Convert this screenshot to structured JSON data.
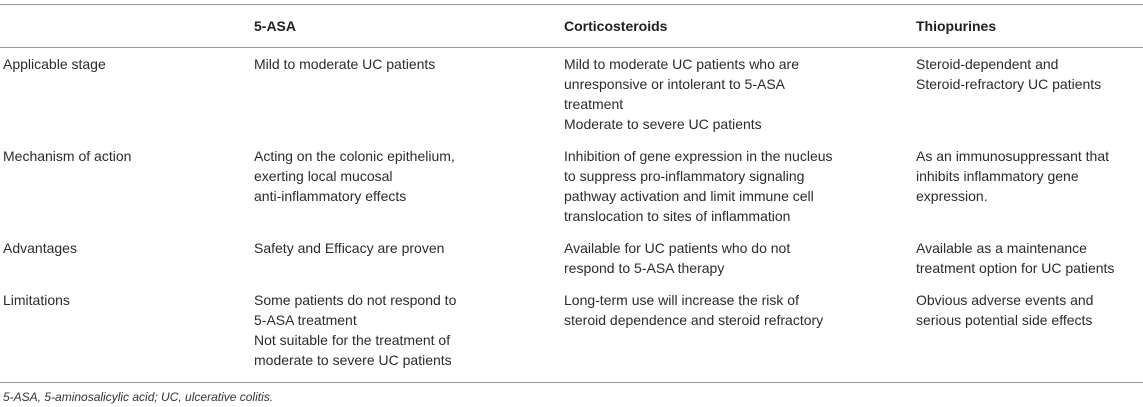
{
  "table": {
    "headers": [
      "",
      "5-ASA",
      "Corticosteroids",
      "Thiopurines"
    ],
    "rows": [
      {
        "label": "Applicable stage",
        "cells": [
          [
            "Mild to moderate UC patients"
          ],
          [
            "Mild to moderate UC patients who are",
            "unresponsive or intolerant to 5-ASA",
            "treatment",
            "Moderate to severe UC patients"
          ],
          [
            "Steroid-dependent and",
            "Steroid-refractory UC patients"
          ]
        ]
      },
      {
        "label": "Mechanism of action",
        "cells": [
          [
            "Acting on the colonic epithelium,",
            "exerting local mucosal",
            "anti-inflammatory effects"
          ],
          [
            "Inhibition of gene expression in the nucleus",
            "to suppress pro-inflammatory signaling",
            "pathway activation and limit immune cell",
            "translocation to sites of inflammation"
          ],
          [
            "As an immunosuppressant that",
            "inhibits inflammatory gene",
            "expression."
          ]
        ]
      },
      {
        "label": "Advantages",
        "cells": [
          [
            "Safety and Efficacy are proven"
          ],
          [
            "Available for UC patients who do not",
            "respond to 5-ASA therapy"
          ],
          [
            "Available as a maintenance",
            "treatment option for UC patients"
          ]
        ]
      },
      {
        "label": "Limitations",
        "cells": [
          [
            "Some patients do not respond to",
            "5-ASA treatment",
            "Not suitable for the treatment of",
            "moderate to severe UC patients"
          ],
          [
            "Long-term use will increase the risk of",
            "steroid dependence and steroid refractory"
          ],
          [
            "Obvious adverse events and",
            "serious potential side effects"
          ]
        ]
      }
    ]
  },
  "footnote": "5-ASA, 5-aminosalicylic acid; UC, ulcerative colitis."
}
